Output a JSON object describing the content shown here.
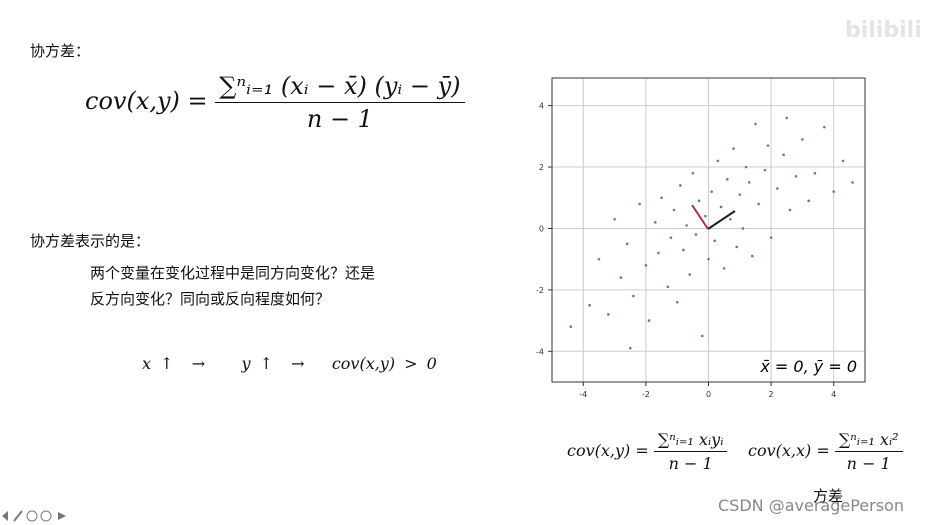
{
  "slide": {
    "title1": "协方差：",
    "formula": {
      "lhs": "cov(x,y) =",
      "numerator": "∑ⁿᵢ₌₁ (xᵢ − x̄) (yᵢ − ȳ)",
      "denominator": "n − 1"
    },
    "title2": "协方差表示的是：",
    "question_lines": [
      "两个变量在变化过程中是同方向变化？还是",
      "反方向变化？同向或反向程度如何？"
    ],
    "relation": [
      "x ↑",
      "→",
      "y ↑",
      "→",
      "cov(x,y) > 0"
    ]
  },
  "chart_data": {
    "type": "scatter",
    "x": [
      -4.4,
      -3.8,
      -3.5,
      -3.2,
      -3.0,
      -2.8,
      -2.6,
      -2.4,
      -2.2,
      -2.0,
      -1.9,
      -1.7,
      -1.6,
      -1.5,
      -1.3,
      -1.2,
      -1.1,
      -1.0,
      -0.9,
      -0.8,
      -0.7,
      -0.6,
      -0.5,
      -0.4,
      -0.3,
      -0.2,
      -0.1,
      0.0,
      0.1,
      0.2,
      0.3,
      0.4,
      0.5,
      0.6,
      0.7,
      0.8,
      0.9,
      1.0,
      1.1,
      1.2,
      1.3,
      1.4,
      1.5,
      1.6,
      1.8,
      1.9,
      2.0,
      2.2,
      2.4,
      2.6,
      2.8,
      3.0,
      3.2,
      3.4,
      3.7,
      4.0,
      4.3,
      4.6,
      -2.5,
      2.5
    ],
    "y": [
      -3.2,
      -2.5,
      -1.0,
      -2.8,
      0.3,
      -1.6,
      -0.5,
      -2.2,
      0.8,
      -1.2,
      -3.0,
      0.2,
      -0.8,
      1.0,
      -1.9,
      -0.3,
      0.6,
      -2.4,
      1.4,
      -0.7,
      0.1,
      -1.5,
      1.8,
      -0.2,
      0.9,
      -3.5,
      0.4,
      -1.0,
      1.2,
      -0.4,
      2.2,
      0.7,
      -1.3,
      1.6,
      0.3,
      2.6,
      -0.6,
      1.1,
      0.0,
      2.0,
      1.5,
      -0.9,
      3.4,
      0.8,
      1.9,
      2.7,
      -0.3,
      1.3,
      2.4,
      0.6,
      1.7,
      2.9,
      0.9,
      1.8,
      3.3,
      1.2,
      2.2,
      1.5,
      -3.9,
      3.6
    ],
    "color": "#5b7f9a",
    "xlim": [
      -5,
      5
    ],
    "ylim": [
      -5,
      4.9
    ],
    "xticks": [
      -4,
      -2,
      0,
      2,
      4
    ],
    "yticks": [
      -4,
      -2,
      0,
      2,
      4
    ],
    "grid": true,
    "annotation": "x̄ = 0, ȳ = 0"
  },
  "bottom_formulas": [
    {
      "lhs": "cov(x,y) =",
      "numerator": "∑ⁿᵢ₌₁ xᵢyᵢ",
      "denominator": "n − 1"
    },
    {
      "lhs": "cov(x,x) =",
      "numerator": "∑ⁿᵢ₌₁ xᵢ²",
      "denominator": "n − 1"
    }
  ],
  "variance_label": "方差",
  "watermark": "CSDN @averagePerson",
  "logo": "bilibili"
}
